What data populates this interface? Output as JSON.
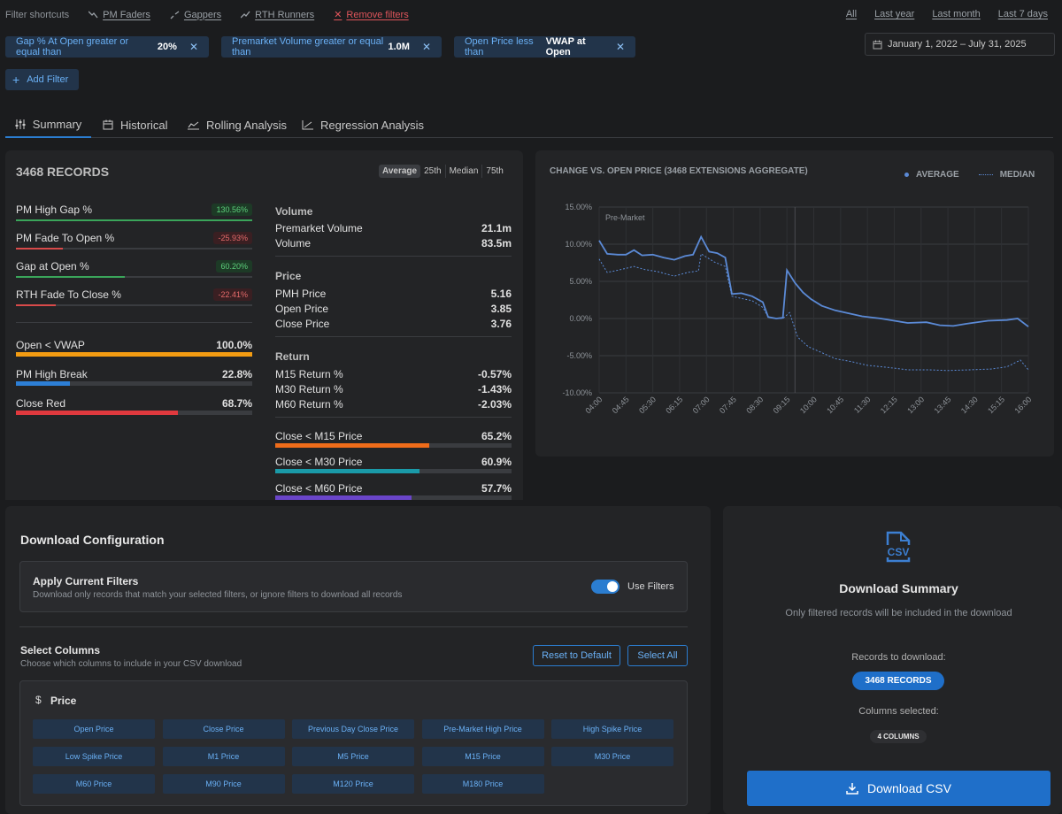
{
  "shortcuts": {
    "label": "Filter shortcuts",
    "items": [
      "PM Faders",
      "Gappers",
      "RTH Runners"
    ],
    "remove": "Remove filters"
  },
  "ranges": [
    "All",
    "Last year",
    "Last month",
    "Last 7 days"
  ],
  "filters": [
    {
      "text": "Gap % At Open greater or equal than",
      "value": "20%"
    },
    {
      "text": "Premarket Volume greater or equal than",
      "value": "1.0M"
    },
    {
      "text": "Open Price less than",
      "value": "VWAP at Open"
    }
  ],
  "date_range": "January 1, 2022 – July 31, 2025",
  "add_filter": "Add Filter",
  "tabs": [
    "Summary",
    "Historical",
    "Rolling Analysis",
    "Regression Analysis"
  ],
  "summary": {
    "records": "3468 RECORDS",
    "stat_tabs": [
      "Average",
      "25th",
      "Median",
      "75th"
    ],
    "left_metrics": [
      {
        "label": "PM High Gap %",
        "value": "130.56%",
        "pct": 100,
        "color": "#3aa55a",
        "kind": "g"
      },
      {
        "label": "PM Fade To Open %",
        "value": "-25.93%",
        "pct": 20,
        "color": "#d84a4a",
        "kind": "r"
      },
      {
        "label": "Gap at Open %",
        "value": "60.20%",
        "pct": 46,
        "color": "#3aa55a",
        "kind": "g"
      },
      {
        "label": "RTH Fade To Close %",
        "value": "-22.41%",
        "pct": 17,
        "color": "#d84a4a",
        "kind": "r"
      }
    ],
    "left_bars": [
      {
        "label": "Open < VWAP",
        "value": "100.0%",
        "pct": 100,
        "color": "#f39c12"
      },
      {
        "label": "PM High Break",
        "value": "22.8%",
        "pct": 22.8,
        "color": "#2d7fd6"
      },
      {
        "label": "Close Red",
        "value": "68.7%",
        "pct": 68.7,
        "color": "#e0393e"
      }
    ],
    "volume_head": "Volume",
    "volume": [
      {
        "label": "Premarket Volume",
        "value": "21.1m"
      },
      {
        "label": "Volume",
        "value": "83.5m"
      }
    ],
    "price_head": "Price",
    "price": [
      {
        "label": "PMH Price",
        "value": "5.16"
      },
      {
        "label": "Open Price",
        "value": "3.85"
      },
      {
        "label": "Close Price",
        "value": "3.76"
      }
    ],
    "return_head": "Return",
    "returns": [
      {
        "label": "M15 Return %",
        "value": "-0.57%"
      },
      {
        "label": "M30 Return %",
        "value": "-1.43%"
      },
      {
        "label": "M60 Return %",
        "value": "-2.03%"
      }
    ],
    "right_bars": [
      {
        "label": "Close < M15 Price",
        "value": "65.2%",
        "pct": 65.2,
        "color": "#ef6c1a"
      },
      {
        "label": "Close < M30 Price",
        "value": "60.9%",
        "pct": 60.9,
        "color": "#1a9aa8"
      },
      {
        "label": "Close < M60 Price",
        "value": "57.7%",
        "pct": 57.7,
        "color": "#6a45c9"
      }
    ]
  },
  "chart_data": {
    "type": "line",
    "title": "CHANGE VS. OPEN PRICE (3468 EXTENSIONS AGGREGATE)",
    "annotation": "Pre-Market",
    "x": [
      "04:00",
      "04:45",
      "05:30",
      "06:15",
      "07:00",
      "07:45",
      "08:30",
      "09:15",
      "10:00",
      "10:45",
      "11:30",
      "12:15",
      "13:00",
      "13:45",
      "14:30",
      "15:15",
      "16:00"
    ],
    "yticks": [
      "15.00%",
      "10.00%",
      "5.00%",
      "0.00%",
      "-5.00%",
      "-10.00%"
    ],
    "ylim": [
      -10,
      15
    ],
    "grid": true,
    "legend_position": "top-right",
    "series": [
      {
        "name": "AVERAGE",
        "color": "#5b8ad6",
        "style": "solid",
        "points": [
          [
            0,
            10.5
          ],
          [
            0.3,
            8.7
          ],
          [
            0.7,
            8.6
          ],
          [
            1,
            8.6
          ],
          [
            1.3,
            9.2
          ],
          [
            1.6,
            8.5
          ],
          [
            2,
            8.6
          ],
          [
            2.4,
            8.2
          ],
          [
            2.8,
            7.9
          ],
          [
            3.2,
            8.4
          ],
          [
            3.5,
            8.6
          ],
          [
            3.8,
            11.0
          ],
          [
            4.1,
            9.0
          ],
          [
            4.4,
            8.8
          ],
          [
            4.7,
            8.2
          ],
          [
            4.95,
            3.3
          ],
          [
            5.3,
            3.4
          ],
          [
            5.7,
            3.0
          ],
          [
            6.1,
            2.2
          ],
          [
            6.3,
            0.2
          ],
          [
            6.6,
            0.0
          ],
          [
            6.85,
            0.1
          ],
          [
            7.0,
            6.5
          ],
          [
            7.3,
            4.8
          ],
          [
            7.6,
            3.5
          ],
          [
            7.9,
            2.6
          ],
          [
            8.3,
            1.7
          ],
          [
            8.8,
            1.1
          ],
          [
            9.3,
            0.7
          ],
          [
            9.8,
            0.3
          ],
          [
            10.5,
            0.0
          ],
          [
            11.0,
            -0.3
          ],
          [
            11.5,
            -0.6
          ],
          [
            12.2,
            -0.5
          ],
          [
            12.7,
            -0.9
          ],
          [
            13.2,
            -1.0
          ],
          [
            13.7,
            -0.7
          ],
          [
            14.5,
            -0.3
          ],
          [
            15.2,
            -0.2
          ],
          [
            15.6,
            0.0
          ],
          [
            16,
            -1.1
          ]
        ]
      },
      {
        "name": "MEDIAN",
        "color": "#5b8ad6",
        "style": "dotted",
        "points": [
          [
            0,
            8.0
          ],
          [
            0.3,
            6.2
          ],
          [
            0.7,
            6.5
          ],
          [
            1.3,
            7.0
          ],
          [
            1.7,
            6.6
          ],
          [
            2.2,
            6.3
          ],
          [
            2.8,
            5.7
          ],
          [
            3.3,
            6.2
          ],
          [
            3.7,
            6.4
          ],
          [
            3.8,
            8.7
          ],
          [
            4.3,
            7.6
          ],
          [
            4.7,
            7.0
          ],
          [
            4.95,
            3.0
          ],
          [
            5.3,
            2.7
          ],
          [
            5.7,
            2.4
          ],
          [
            6.1,
            1.5
          ],
          [
            6.3,
            0.2
          ],
          [
            6.6,
            0.0
          ],
          [
            6.85,
            0.0
          ],
          [
            7.1,
            0.8
          ],
          [
            7.4,
            -2.5
          ],
          [
            7.8,
            -3.8
          ],
          [
            8.3,
            -4.6
          ],
          [
            8.8,
            -5.4
          ],
          [
            9.4,
            -5.8
          ],
          [
            10,
            -6.3
          ],
          [
            10.8,
            -6.6
          ],
          [
            11.5,
            -6.9
          ],
          [
            12.3,
            -6.9
          ],
          [
            13,
            -7.0
          ],
          [
            13.8,
            -6.9
          ],
          [
            14.6,
            -6.8
          ],
          [
            15.2,
            -6.5
          ],
          [
            15.7,
            -5.6
          ],
          [
            16,
            -6.9
          ]
        ]
      }
    ]
  },
  "download": {
    "title": "Download Configuration",
    "apply_title": "Apply Current Filters",
    "apply_desc": "Download only records that match your selected filters, or ignore filters to download all records",
    "toggle_label": "Use Filters",
    "cols_title": "Select Columns",
    "cols_desc": "Choose which columns to include in your CSV download",
    "reset": "Reset to Default",
    "select_all": "Select All",
    "group_icon": "$",
    "group": "Price",
    "columns": [
      "Open Price",
      "Close Price",
      "Previous Day Close Price",
      "Pre-Market High Price",
      "High Spike Price",
      "Low Spike Price",
      "M1 Price",
      "M5 Price",
      "M15 Price",
      "M30 Price",
      "M60 Price",
      "M90 Price",
      "M120 Price",
      "M180 Price"
    ]
  },
  "summary_panel": {
    "icon_text": "CSV",
    "title": "Download Summary",
    "desc": "Only filtered records will be included in the download",
    "records_label": "Records to download:",
    "records_badge": "3468 RECORDS",
    "columns_label": "Columns selected:",
    "columns_badge": "4 COLUMNS",
    "button": "Download CSV"
  }
}
